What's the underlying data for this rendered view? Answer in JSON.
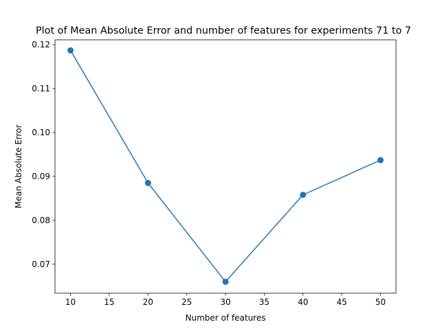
{
  "chart_data": {
    "type": "line",
    "title": "Plot of Mean Absolute Error and number of features for experiments 71 to 7",
    "xlabel": "Number of features",
    "ylabel": "Mean Absolute Error",
    "x": [
      10,
      20,
      30,
      40,
      50
    ],
    "series": [
      {
        "values": [
          0.1187,
          0.0885,
          0.066,
          0.0858,
          0.0937
        ]
      }
    ],
    "xlim": [
      8,
      52
    ],
    "ylim": [
      0.0634,
      0.1211
    ],
    "xticks": [
      10,
      15,
      20,
      25,
      30,
      35,
      40,
      45,
      50
    ],
    "xtick_labels": [
      "10",
      "15",
      "20",
      "25",
      "30",
      "35",
      "40",
      "45",
      "50"
    ],
    "yticks": [
      0.07,
      0.08,
      0.09,
      0.1,
      0.11,
      0.12
    ],
    "ytick_labels": [
      "0.07",
      "0.08",
      "0.09",
      "0.10",
      "0.11",
      "0.12"
    ],
    "markers": "circle",
    "grid": false,
    "line_color": "#1f77b4"
  }
}
